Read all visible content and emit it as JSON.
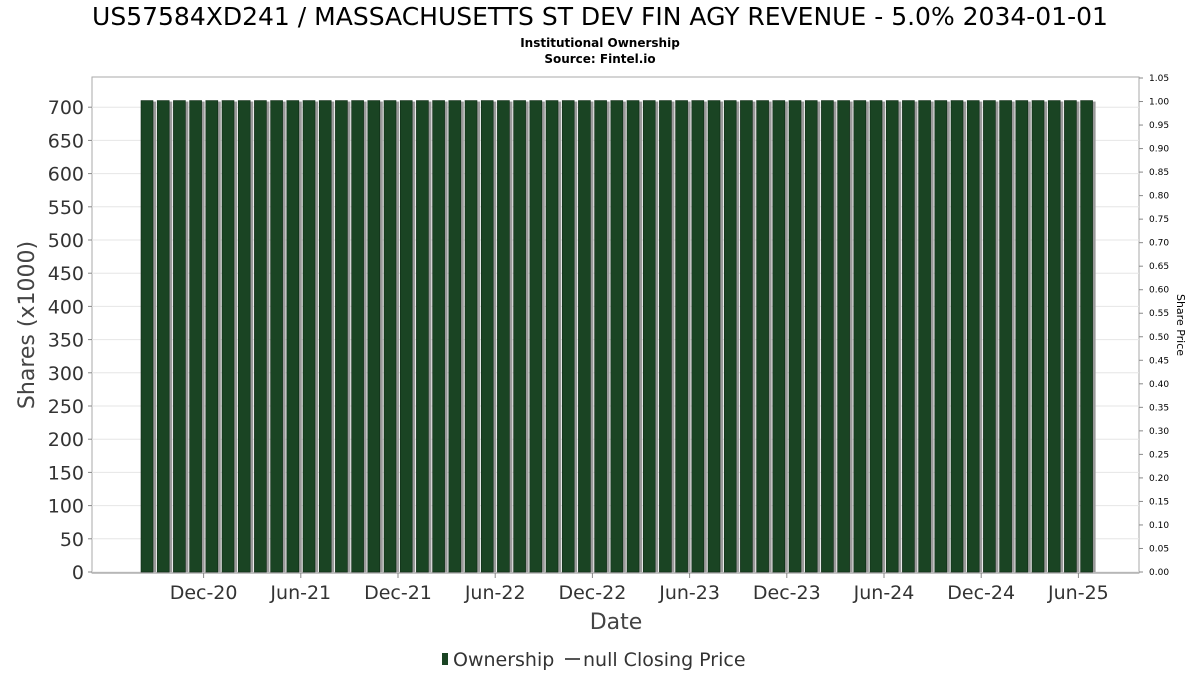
{
  "chart_data": {
    "type": "bar",
    "title": "US57584XD241 / MASSACHUSETTS ST DEV FIN AGY REVENUE - 5.0% 2034-01-01",
    "subtitle": "Institutional Ownership",
    "source": "Source: Fintel.io",
    "xlabel": "Date",
    "ylabel": "Shares (x1000)",
    "y2label": "Share Price",
    "ylim": [
      0,
      740
    ],
    "y2lim": [
      0,
      1.05
    ],
    "yticks": [
      0,
      50,
      100,
      150,
      200,
      250,
      300,
      350,
      400,
      450,
      500,
      550,
      600,
      650,
      700
    ],
    "y2ticks": [
      "0.00",
      "0.05",
      "0.10",
      "0.15",
      "0.20",
      "0.25",
      "0.30",
      "0.35",
      "0.40",
      "0.45",
      "0.50",
      "0.55",
      "0.60",
      "0.65",
      "0.70",
      "0.75",
      "0.80",
      "0.85",
      "0.90",
      "0.95",
      "1.00",
      "1.05"
    ],
    "xticks": [
      {
        "label": "Dec-20",
        "index": 3
      },
      {
        "label": "Jun-21",
        "index": 9
      },
      {
        "label": "Dec-21",
        "index": 15
      },
      {
        "label": "Jun-22",
        "index": 21
      },
      {
        "label": "Dec-22",
        "index": 27
      },
      {
        "label": "Jun-23",
        "index": 33
      },
      {
        "label": "Dec-23",
        "index": 39
      },
      {
        "label": "Jun-24",
        "index": 45
      },
      {
        "label": "Dec-24",
        "index": 51
      },
      {
        "label": "Jun-25",
        "index": 57
      }
    ],
    "grid": true,
    "legend_position": "bottom",
    "series": [
      {
        "name": "Ownership",
        "color": "#1a4423",
        "values": [
          710,
          710,
          710,
          710,
          710,
          710,
          710,
          710,
          710,
          710,
          710,
          710,
          710,
          710,
          710,
          710,
          710,
          710,
          710,
          710,
          710,
          710,
          710,
          710,
          710,
          710,
          710,
          710,
          710,
          710,
          710,
          710,
          710,
          710,
          710,
          710,
          710,
          710,
          710,
          710,
          710,
          710,
          710,
          710,
          710,
          710,
          710,
          710,
          710,
          710,
          710,
          710,
          710,
          710,
          710,
          710,
          710,
          710,
          710
        ]
      },
      {
        "name": "null Closing Price",
        "color": "#555555",
        "values": []
      }
    ]
  }
}
